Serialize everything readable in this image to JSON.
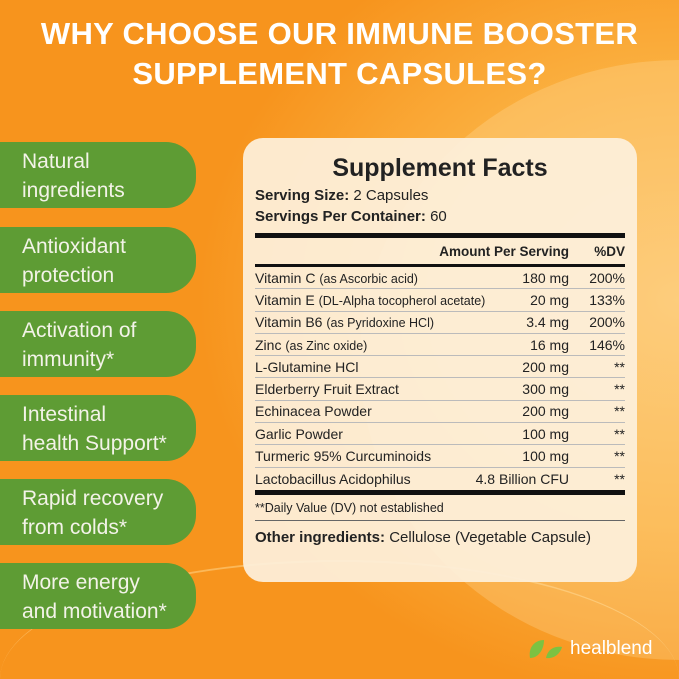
{
  "title": {
    "line1": "WHY CHOOSE OUR IMMUNE BOOSTER",
    "line2": "SUPPLEMENT CAPSULES?"
  },
  "benefits": [
    {
      "line1": "Natural",
      "line2": "ingredients"
    },
    {
      "line1": "Antioxidant",
      "line2": "protection"
    },
    {
      "line1": "Activation of",
      "line2": "immunity*"
    },
    {
      "line1": "Intestinal",
      "line2": "health Support*"
    },
    {
      "line1": "Rapid recovery",
      "line2": "from colds*"
    },
    {
      "line1": "More energy",
      "line2": "and motivation*"
    }
  ],
  "facts": {
    "title": "Supplement Facts",
    "serving_size_label": "Serving Size:",
    "serving_size": "2 Capsules",
    "servings_label": "Servings Per Container:",
    "servings": "60",
    "col_amount": "Amount Per Serving",
    "col_dv": "%DV",
    "rows": [
      {
        "name": "Vitamin C",
        "note": "(as Ascorbic acid)",
        "amount": "180 mg",
        "dv": "200%"
      },
      {
        "name": "Vitamin E",
        "note": "(DL-Alpha tocopherol acetate)",
        "amount": "20 mg",
        "dv": "133%"
      },
      {
        "name": "Vitamin B6",
        "note": "(as Pyridoxine HCl)",
        "amount": "3.4 mg",
        "dv": "200%"
      },
      {
        "name": "Zinc",
        "note": "(as Zinc oxide)",
        "amount": "16 mg",
        "dv": "146%"
      },
      {
        "name": "L-Glutamine HCl",
        "note": "",
        "amount": "200 mg",
        "dv": "**"
      },
      {
        "name": "Elderberry Fruit Extract",
        "note": "",
        "amount": "300 mg",
        "dv": "**"
      },
      {
        "name": "Echinacea Powder",
        "note": "",
        "amount": "200 mg",
        "dv": "**"
      },
      {
        "name": "Garlic Powder",
        "note": "",
        "amount": "100 mg",
        "dv": "**"
      },
      {
        "name": "Turmeric 95% Curcuminoids",
        "note": "",
        "amount": "100 mg",
        "dv": "**"
      },
      {
        "name": "Lactobacillus Acidophilus",
        "note": "",
        "amount": "4.8 Billion CFU",
        "dv": "**"
      }
    ],
    "footnote": "**Daily Value (DV) not established",
    "other_label": "Other ingredients:",
    "other": "Cellulose (Vegetable Capsule)"
  },
  "brand": {
    "name": "healblend",
    "leaf_color": "#7cc242"
  },
  "colors": {
    "background": "#f7941d",
    "pill": "#5e9c34",
    "panel": "#fdf0dc"
  }
}
